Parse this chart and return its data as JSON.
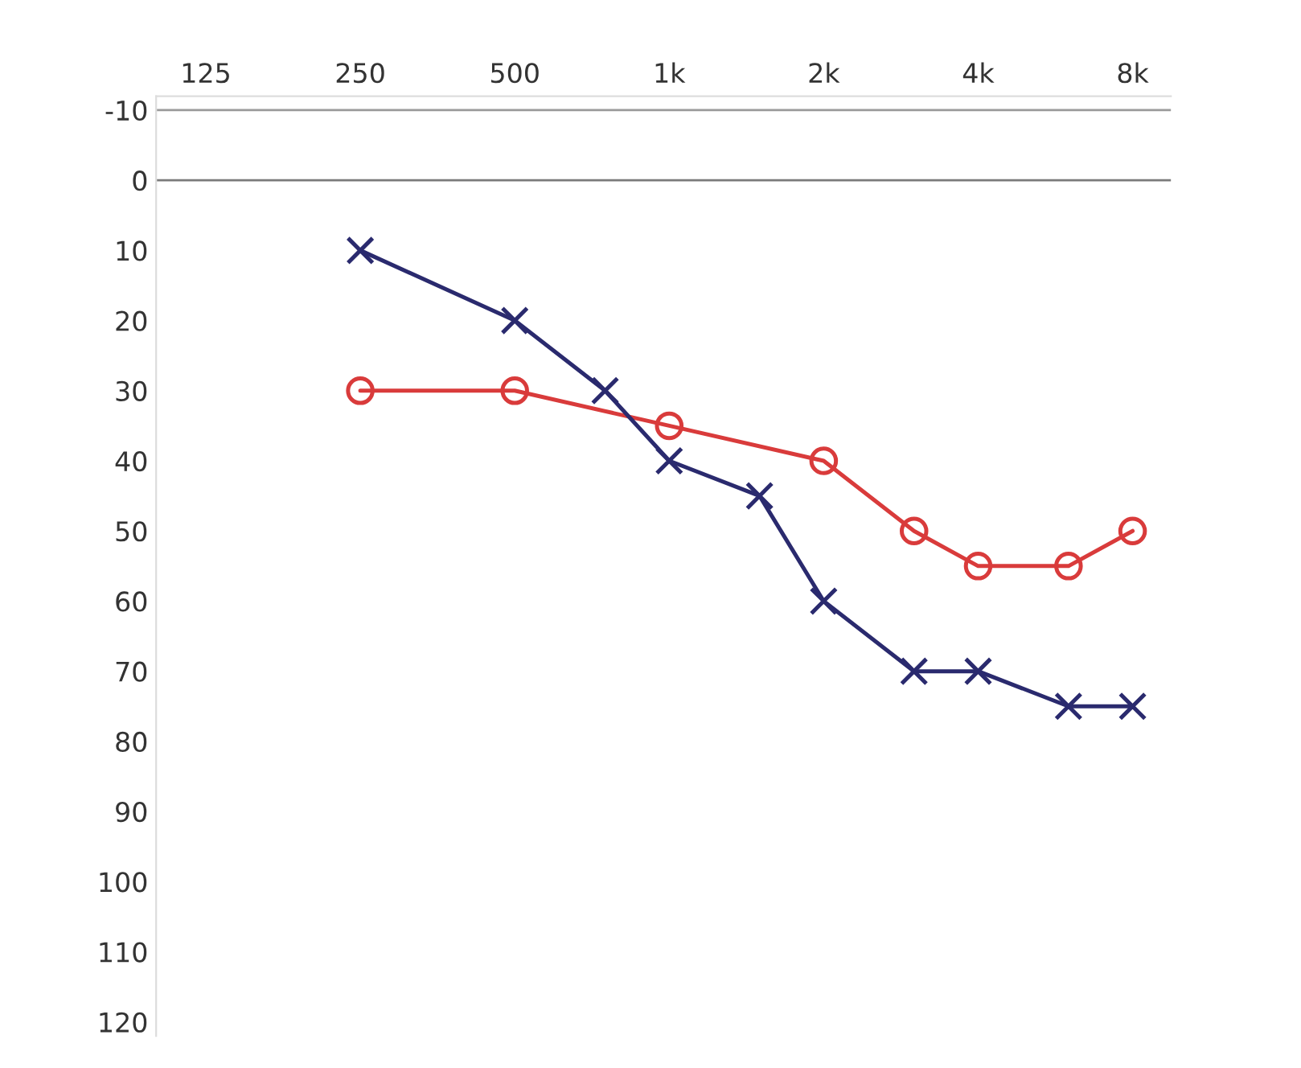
{
  "chart_data": {
    "type": "line",
    "log": "x",
    "xlim": [
      100,
      9500
    ],
    "xticks": [
      {
        "value": 125,
        "label": "125"
      },
      {
        "value": 250,
        "label": "250"
      },
      {
        "value": 500,
        "label": "500"
      },
      {
        "value": 1000,
        "label": "1k"
      },
      {
        "value": 2000,
        "label": "2k"
      },
      {
        "value": 4000,
        "label": "4k"
      },
      {
        "value": 8000,
        "label": "8k"
      }
    ],
    "ylim": [
      122,
      -12
    ],
    "yticks": [
      -10,
      0,
      10,
      20,
      30,
      40,
      50,
      60,
      70,
      80,
      90,
      100,
      110,
      120
    ],
    "grid": false,
    "ref_lines": [
      {
        "axis": "y",
        "value": -10,
        "color": "#9a9a9a"
      },
      {
        "axis": "y",
        "value": 0,
        "color": "#7a7a7a"
      }
    ],
    "series": [
      {
        "color": "#d93b3b",
        "marker": "circle",
        "x": [
          250,
          500,
          1000,
          2000,
          3000,
          4000,
          6000,
          8000
        ],
        "values": [
          30,
          30,
          35,
          40,
          50,
          55,
          55,
          50
        ]
      },
      {
        "color": "#2a2a6e",
        "marker": "cross",
        "x": [
          250,
          500,
          750,
          1000,
          1500,
          2000,
          3000,
          4000,
          6000,
          8000
        ],
        "values": [
          10,
          20,
          30,
          40,
          45,
          60,
          70,
          70,
          75,
          75
        ]
      }
    ]
  }
}
